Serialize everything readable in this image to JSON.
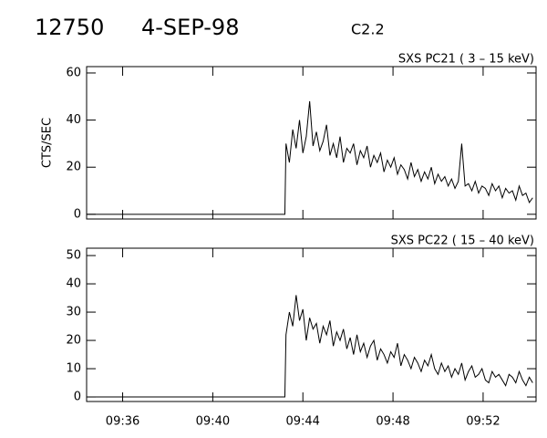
{
  "header": {
    "id": "12750",
    "date": "4-SEP-98",
    "class": "C2.2"
  },
  "chart_data": [
    {
      "type": "line",
      "title": "SXS PC21  (  3 – 15 keV)",
      "ylabel": "CTS/SEC",
      "color": "#000000",
      "xlim": [
        574.4,
        594.35
      ],
      "xticks": [
        576,
        580,
        584,
        588,
        592
      ],
      "ylim": [
        -2,
        62.7
      ],
      "yticks": [
        0,
        20,
        40,
        60
      ],
      "x": [
        574.4,
        583.2,
        583.25,
        583.4,
        583.55,
        583.7,
        583.85,
        584.0,
        584.15,
        584.3,
        584.45,
        584.6,
        584.75,
        584.9,
        585.05,
        585.2,
        585.35,
        585.5,
        585.65,
        585.8,
        585.95,
        586.1,
        586.25,
        586.4,
        586.55,
        586.7,
        586.85,
        587.0,
        587.15,
        587.3,
        587.45,
        587.6,
        587.75,
        587.9,
        588.05,
        588.2,
        588.35,
        588.5,
        588.65,
        588.8,
        588.95,
        589.1,
        589.25,
        589.4,
        589.55,
        589.7,
        589.85,
        590.0,
        590.15,
        590.3,
        590.45,
        590.6,
        590.75,
        590.9,
        591.05,
        591.2,
        591.35,
        591.5,
        591.65,
        591.8,
        591.95,
        592.1,
        592.25,
        592.4,
        592.55,
        592.7,
        592.85,
        593.0,
        593.15,
        593.3,
        593.45,
        593.6,
        593.75,
        593.9,
        594.05,
        594.2
      ],
      "values": [
        0,
        0,
        30,
        22,
        36,
        28,
        40,
        26,
        33,
        48,
        29,
        35,
        27,
        31,
        38,
        25,
        30,
        24,
        33,
        22,
        28,
        26,
        30,
        21,
        27,
        24,
        29,
        20,
        25,
        22,
        26,
        18,
        23,
        20,
        24,
        17,
        21,
        19,
        15,
        22,
        16,
        19,
        14,
        18,
        15,
        20,
        13,
        17,
        14,
        16,
        12,
        15,
        11,
        14,
        30,
        12,
        13,
        10,
        14,
        9,
        12,
        11,
        8,
        13,
        10,
        12,
        7,
        11,
        9,
        10,
        6,
        12,
        8,
        9,
        5,
        7
      ]
    },
    {
      "type": "line",
      "title": "SXS PC22  ( 15 – 40 keV)",
      "color": "#000000",
      "xlim": [
        574.4,
        594.35
      ],
      "xticks": [
        {
          "value": 576,
          "label": "09:36"
        },
        {
          "value": 580,
          "label": "09:40"
        },
        {
          "value": 584,
          "label": "09:44"
        },
        {
          "value": 588,
          "label": "09:48"
        },
        {
          "value": 592,
          "label": "09:52"
        }
      ],
      "ylim": [
        -1.6,
        52.6
      ],
      "yticks": [
        0,
        10,
        20,
        30,
        40,
        50
      ],
      "x": [
        574.4,
        583.2,
        583.25,
        583.4,
        583.55,
        583.7,
        583.85,
        584.0,
        584.15,
        584.3,
        584.45,
        584.6,
        584.75,
        584.9,
        585.05,
        585.2,
        585.35,
        585.5,
        585.65,
        585.8,
        585.95,
        586.1,
        586.25,
        586.4,
        586.55,
        586.7,
        586.85,
        587.0,
        587.15,
        587.3,
        587.45,
        587.6,
        587.75,
        587.9,
        588.05,
        588.2,
        588.35,
        588.5,
        588.65,
        588.8,
        588.95,
        589.1,
        589.25,
        589.4,
        589.55,
        589.7,
        589.85,
        590.0,
        590.15,
        590.3,
        590.45,
        590.6,
        590.75,
        590.9,
        591.05,
        591.2,
        591.35,
        591.5,
        591.65,
        591.8,
        591.95,
        592.1,
        592.25,
        592.4,
        592.55,
        592.7,
        592.85,
        593.0,
        593.15,
        593.3,
        593.45,
        593.6,
        593.75,
        593.9,
        594.05,
        594.2
      ],
      "values": [
        0,
        0,
        22,
        30,
        25,
        36,
        27,
        31,
        20,
        28,
        24,
        26,
        19,
        25,
        22,
        27,
        18,
        23,
        20,
        24,
        17,
        21,
        15,
        22,
        16,
        19,
        14,
        18,
        20,
        13,
        17,
        15,
        12,
        16,
        14,
        19,
        11,
        15,
        13,
        10,
        14,
        12,
        9,
        13,
        11,
        15,
        10,
        8,
        12,
        9,
        11,
        7,
        10,
        8,
        12,
        6,
        9,
        11,
        7,
        8,
        10,
        6,
        5,
        9,
        7,
        8,
        6,
        4,
        8,
        7,
        5,
        9,
        6,
        4,
        7,
        5
      ]
    }
  ]
}
